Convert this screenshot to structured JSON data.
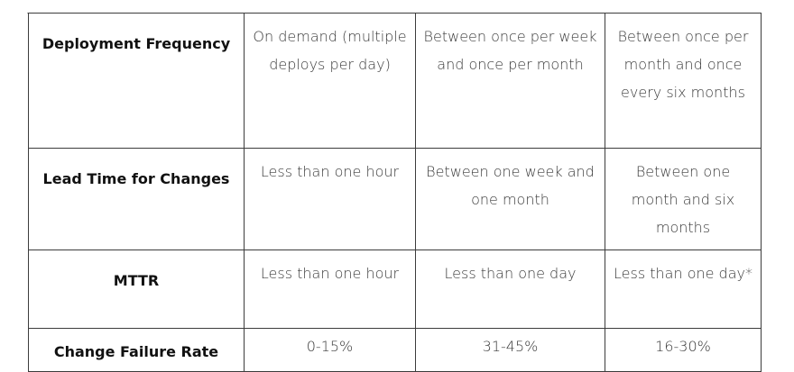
{
  "rows": [
    {
      "metric": "Deployment Frequency",
      "cells": [
        "On demand (multiple deploys per day)",
        "Between once per week and once per month",
        "Between once per month and once every six months"
      ]
    },
    {
      "metric": "Lead Time for Changes",
      "cells": [
        "Less than one hour",
        "Between one week and one month",
        "Between one month and six months"
      ]
    },
    {
      "metric": "MTTR",
      "cells": [
        "Less than one hour",
        "Less than one day",
        "Less than one day*"
      ]
    },
    {
      "metric": "Change Failure Rate",
      "cells": [
        "0-15%",
        "31-45%",
        "16-30%"
      ]
    }
  ]
}
